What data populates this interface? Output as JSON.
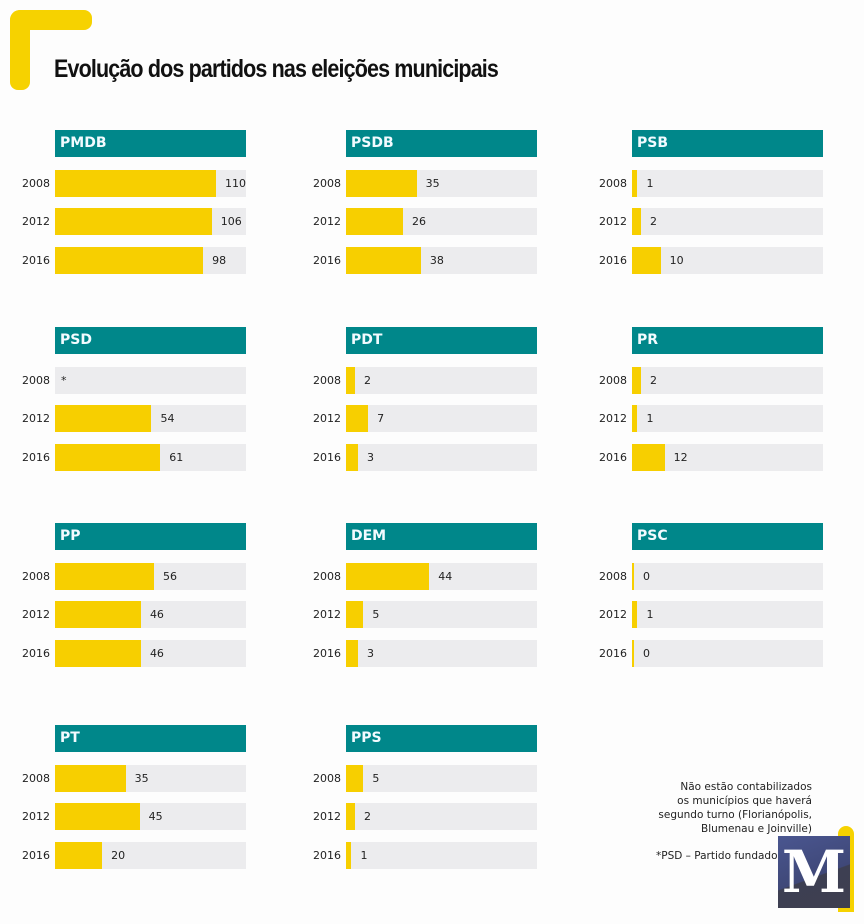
{
  "title": "Evolução dos partidos nas eleições municipais",
  "colors": {
    "header": "#00878a",
    "bar": "#f7cf00",
    "track": "#ececee",
    "accent": "#f6d200"
  },
  "note": [
    "Não estão contabilizados",
    "os municípios que haverá",
    "segundo turno (Florianópolis,",
    "Blumenau e Joinville)"
  ],
  "footnote": "*PSD – Partido fundado em 2011",
  "logo": {
    "letter": "M"
  },
  "chart_data": {
    "type": "bar",
    "title": "Evolução dos partidos nas eleições municipais",
    "xlabel": "",
    "ylabel": "",
    "categories": [
      "2008",
      "2012",
      "2016"
    ],
    "grid": false,
    "panels": [
      {
        "name": "PMDB",
        "values": [
          110,
          106,
          98
        ],
        "labels": [
          "110",
          "106",
          "98"
        ]
      },
      {
        "name": "PSDB",
        "values": [
          35,
          26,
          38
        ],
        "labels": [
          "35",
          "26",
          "38"
        ]
      },
      {
        "name": "PSB",
        "values": [
          1,
          2,
          10
        ],
        "labels": [
          "1",
          "2",
          "10"
        ]
      },
      {
        "name": "PSD",
        "values": [
          null,
          54,
          61
        ],
        "labels": [
          "*",
          "54",
          "61"
        ]
      },
      {
        "name": "PDT",
        "values": [
          2,
          7,
          3
        ],
        "labels": [
          "2",
          "7",
          "3"
        ]
      },
      {
        "name": "PR",
        "values": [
          2,
          1,
          12
        ],
        "labels": [
          "2",
          "1",
          "12"
        ]
      },
      {
        "name": "PP",
        "values": [
          56,
          46,
          46
        ],
        "labels": [
          "56",
          "46",
          "46"
        ]
      },
      {
        "name": "DEM",
        "values": [
          44,
          5,
          3
        ],
        "labels": [
          "44",
          "5",
          "3"
        ]
      },
      {
        "name": "PSC",
        "values": [
          0,
          1,
          0
        ],
        "labels": [
          "0",
          "1",
          "0"
        ]
      },
      {
        "name": "PT",
        "values": [
          35,
          45,
          20
        ],
        "labels": [
          "35",
          "45",
          "20"
        ]
      },
      {
        "name": "PPS",
        "values": [
          5,
          2,
          1
        ],
        "labels": [
          "5",
          "2",
          "1"
        ]
      }
    ]
  }
}
